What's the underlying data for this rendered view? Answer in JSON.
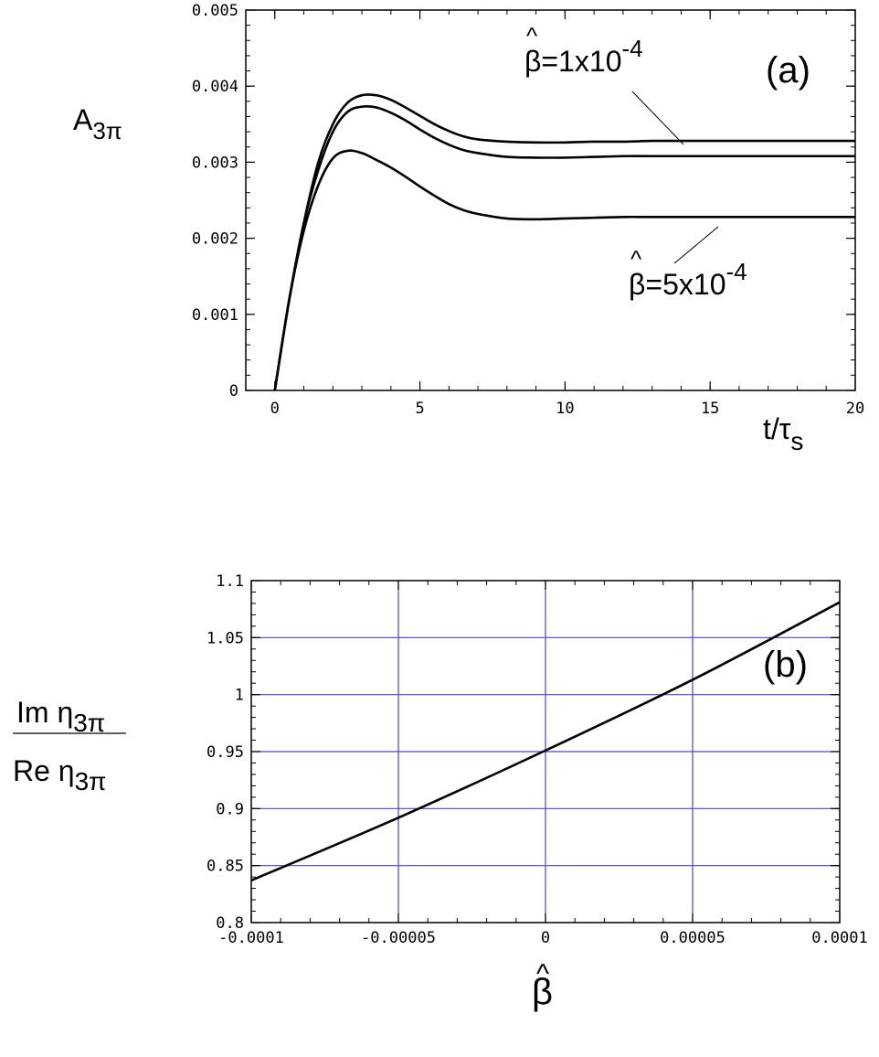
{
  "chart_data": [
    {
      "id": "a",
      "type": "line",
      "panel_label": "(a)",
      "title": "",
      "xlabel": "t/τ",
      "xlabel_sub": "s",
      "ylabel": "A",
      "ylabel_sub": "3π",
      "xlim": [
        -1,
        20
      ],
      "ylim": [
        0,
        0.005
      ],
      "grid": false,
      "xticks": [
        0,
        5,
        10,
        15,
        20
      ],
      "xtick_labels": [
        "0",
        "5",
        "10",
        "15",
        "20"
      ],
      "yticks": [
        0,
        0.001,
        0.002,
        0.003,
        0.004,
        0.005
      ],
      "ytick_labels": [
        "0",
        "0.001",
        "0.002",
        "0.003",
        "0.004",
        "0.005"
      ],
      "annotations": [
        {
          "text": "β=1x10",
          "sup": "-4",
          "hat": "^",
          "points_to": [
            14.5,
            0.00327
          ]
        },
        {
          "text": "β=5x10",
          "sup": "-4",
          "hat": "^",
          "points_to": [
            15.5,
            0.00228
          ]
        }
      ],
      "series": [
        {
          "x": [
            0,
            0.5,
            1,
            1.5,
            2,
            2.5,
            3,
            3.5,
            4,
            4.5,
            5,
            5.5,
            6,
            6.5,
            7,
            8,
            9,
            10,
            11,
            12,
            13,
            14,
            15,
            16,
            17,
            18,
            19,
            20
          ],
          "y": [
            0,
            0.0012,
            0.0022,
            0.003,
            0.0035,
            0.00378,
            0.00388,
            0.00388,
            0.00382,
            0.00372,
            0.00361,
            0.0035,
            0.00341,
            0.00334,
            0.0033,
            0.00327,
            0.00326,
            0.00326,
            0.00327,
            0.00327,
            0.00328,
            0.00328,
            0.00328,
            0.00328,
            0.00328,
            0.00328,
            0.00328,
            0.00328
          ]
        },
        {
          "x": [
            0,
            0.5,
            1,
            1.5,
            2,
            2.5,
            3,
            3.5,
            4,
            4.5,
            5,
            5.5,
            6,
            6.5,
            7,
            8,
            9,
            10,
            11,
            12,
            13,
            14,
            15,
            16,
            17,
            18,
            19,
            20
          ],
          "y": [
            0,
            0.0012,
            0.0022,
            0.0029,
            0.0034,
            0.00366,
            0.00373,
            0.00372,
            0.00365,
            0.00355,
            0.00343,
            0.00332,
            0.00323,
            0.00316,
            0.00312,
            0.00307,
            0.00306,
            0.00306,
            0.00307,
            0.00308,
            0.00308,
            0.00308,
            0.00308,
            0.00308,
            0.00308,
            0.00308,
            0.00308,
            0.00308
          ]
        },
        {
          "x": [
            0,
            0.5,
            1,
            1.5,
            2,
            2.5,
            3,
            3.5,
            4,
            4.5,
            5,
            5.5,
            6,
            6.5,
            7,
            8,
            9,
            10,
            11,
            12,
            13,
            14,
            15,
            16,
            17,
            18,
            19,
            20
          ],
          "y": [
            0,
            0.0012,
            0.0021,
            0.0027,
            0.00305,
            0.00315,
            0.00312,
            0.00303,
            0.00293,
            0.00281,
            0.00268,
            0.00256,
            0.00245,
            0.00237,
            0.00232,
            0.00226,
            0.00225,
            0.00226,
            0.00227,
            0.00228,
            0.00228,
            0.00228,
            0.00228,
            0.00228,
            0.00228,
            0.00228,
            0.00228,
            0.00228
          ]
        }
      ]
    },
    {
      "id": "b",
      "type": "line",
      "panel_label": "(b)",
      "title": "",
      "xlabel": "β",
      "xlabel_hat": "^",
      "ylabel_num": "Im η",
      "ylabel_num_sub": "3π",
      "ylabel_den": "Re η",
      "ylabel_den_sub": "3π",
      "xlim": [
        -0.0001,
        0.0001
      ],
      "ylim": [
        0.8,
        1.1
      ],
      "grid": true,
      "xticks": [
        -0.0001,
        -5e-05,
        0,
        5e-05,
        0.0001
      ],
      "xtick_labels": [
        "-0.0001",
        "-0.00005",
        "0",
        "0.00005",
        "0.0001"
      ],
      "yticks": [
        0.8,
        0.85,
        0.9,
        0.95,
        1,
        1.05,
        1.1
      ],
      "ytick_labels": [
        "0.8",
        "0.85",
        "0.9",
        "0.95",
        "1",
        "1.05",
        "1.1"
      ],
      "series": [
        {
          "x": [
            -0.0001,
            -5e-05,
            0,
            5e-05,
            0.0001
          ],
          "y": [
            0.837,
            0.892,
            0.951,
            1.013,
            1.081
          ]
        }
      ]
    }
  ]
}
